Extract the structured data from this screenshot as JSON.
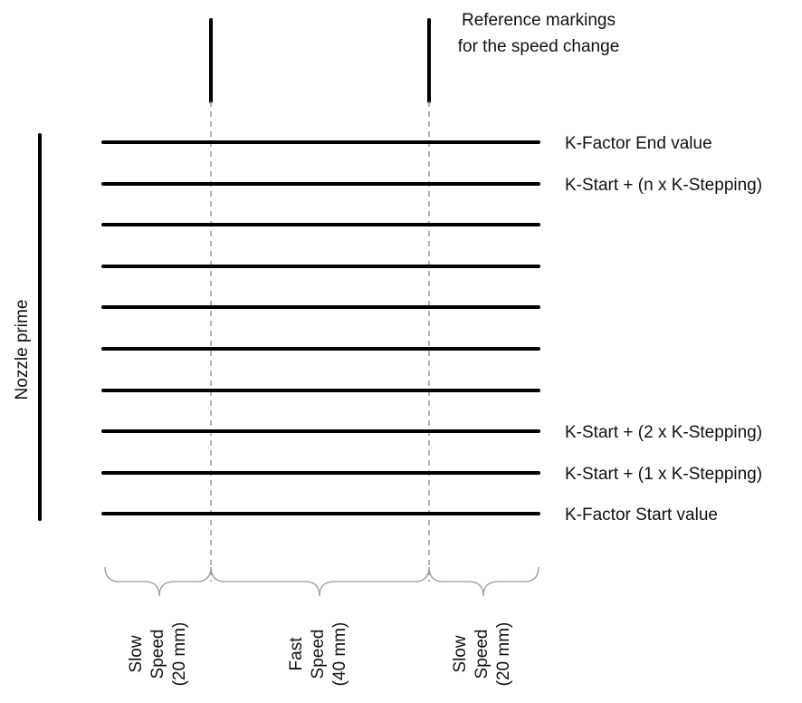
{
  "reference": {
    "line1": "Reference markings",
    "line2": "for the speed change"
  },
  "nozzle_prime": "Nozzle prime",
  "rows": [
    {
      "label": "K-Factor End value"
    },
    {
      "label": "K-Start + (n x K-Stepping)"
    },
    {
      "label": ""
    },
    {
      "label": ""
    },
    {
      "label": ""
    },
    {
      "label": ""
    },
    {
      "label": ""
    },
    {
      "label": "K-Start + (2 x K-Stepping)"
    },
    {
      "label": "K-Start + (1 x K-Stepping)"
    },
    {
      "label": "K-Factor Start value"
    }
  ],
  "segments": [
    {
      "line1": "Slow",
      "line2": "Speed",
      "line3": "(20 mm)"
    },
    {
      "line1": "Fast",
      "line2": "Speed",
      "line3": "(40 mm)"
    },
    {
      "line1": "Slow",
      "line2": "Speed",
      "line3": "(20 mm)"
    }
  ],
  "colors": {
    "line": "#000000",
    "guide": "#9a9a9a",
    "text": "#111111"
  }
}
